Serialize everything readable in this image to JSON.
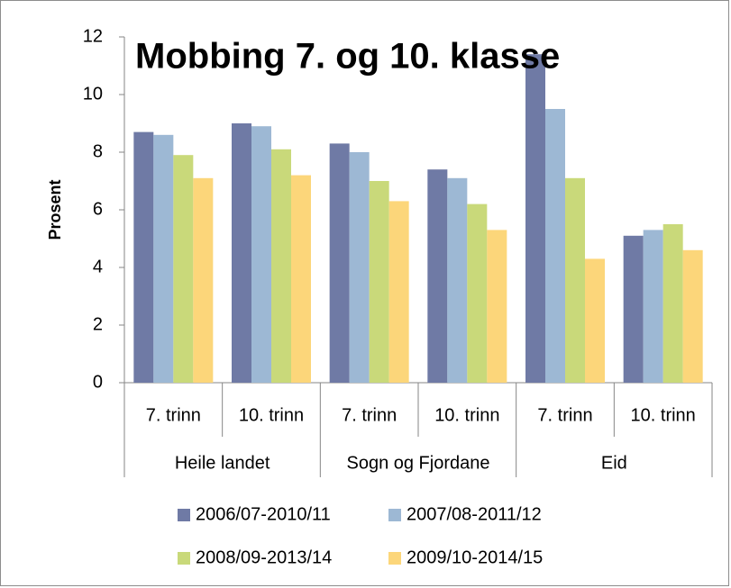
{
  "chart_data": {
    "type": "bar",
    "title": "Mobbing 7. og 10. klasse",
    "y_label": "Prosent",
    "categories": [
      "7. trinn",
      "10. trinn",
      "7. trinn",
      "10. trinn",
      "7. trinn",
      "10. trinn"
    ],
    "group_labels": [
      "Heile landet",
      "Sogn og Fjordane",
      "Eid"
    ],
    "series": [
      {
        "name": "2006/07-2010/11",
        "color": "#6f7aa5",
        "values": [
          8.7,
          9.0,
          8.3,
          7.4,
          11.4,
          5.1
        ]
      },
      {
        "name": "2007/08-2011/12",
        "color": "#9db8d4",
        "values": [
          8.6,
          8.9,
          8.0,
          7.1,
          9.5,
          5.3
        ]
      },
      {
        "name": "2008/09-2013/14",
        "color": "#c9d97a",
        "values": [
          7.9,
          8.1,
          7.0,
          6.2,
          7.1,
          5.5
        ]
      },
      {
        "name": "2009/10-2014/15",
        "color": "#fcd67a",
        "values": [
          7.1,
          7.2,
          6.3,
          5.3,
          4.3,
          4.6
        ]
      }
    ],
    "ylim": [
      0,
      12
    ],
    "yticks": [
      0,
      2,
      4,
      6,
      8,
      10,
      12
    ],
    "grid": false
  }
}
